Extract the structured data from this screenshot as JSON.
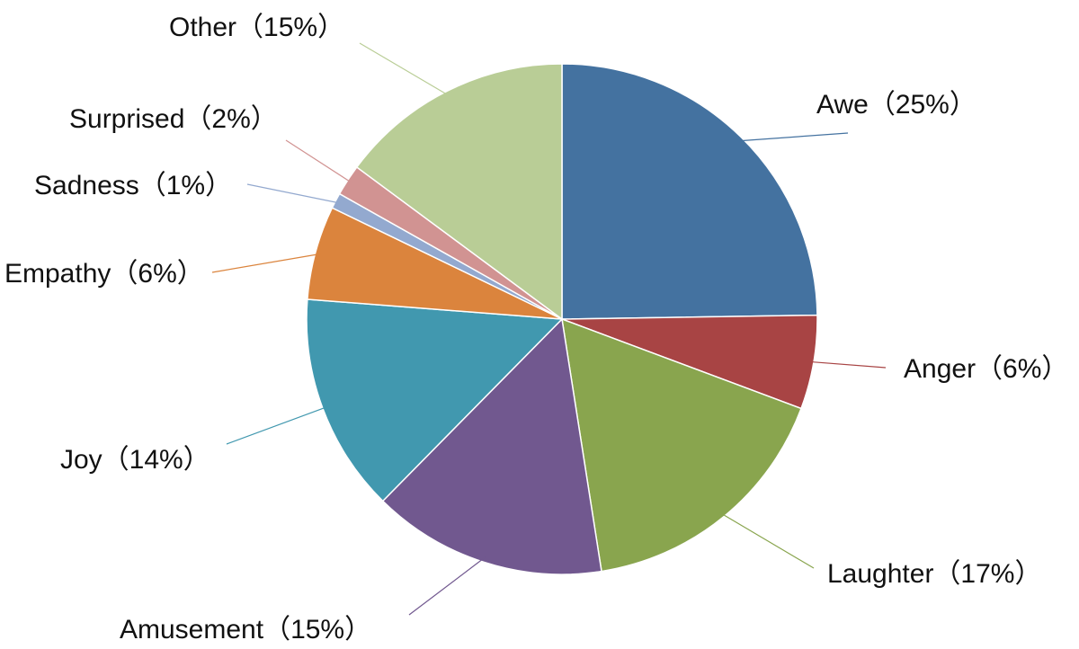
{
  "chart_data": {
    "type": "pie",
    "title": "",
    "start_angle_deg": 0,
    "direction": "clockwise",
    "slices": [
      {
        "label": "Awe（25%）",
        "category": "Awe",
        "value": 25,
        "color": "#4472A0"
      },
      {
        "label": "Anger（6%）",
        "category": "Anger",
        "value": 6,
        "color": "#A84444"
      },
      {
        "label": "Laughter（17%）",
        "category": "Laughter",
        "value": 17,
        "color": "#89A54E"
      },
      {
        "label": "Amusement（15%）",
        "category": "Amusement",
        "value": 15,
        "color": "#71588F"
      },
      {
        "label": "Joy（14%）",
        "category": "Joy",
        "value": 14,
        "color": "#4198AF"
      },
      {
        "label": "Empathy（6%）",
        "category": "Empathy",
        "value": 6,
        "color": "#DB843D"
      },
      {
        "label": "Sadness（1%）",
        "category": "Sadness",
        "value": 1,
        "color": "#93A9CF"
      },
      {
        "label": "Surprised（2%）",
        "category": "Surprised",
        "value": 2,
        "color": "#D19392"
      },
      {
        "label": "Other（15%）",
        "category": "Other",
        "value": 15,
        "color": "#B9CD96"
      }
    ]
  }
}
